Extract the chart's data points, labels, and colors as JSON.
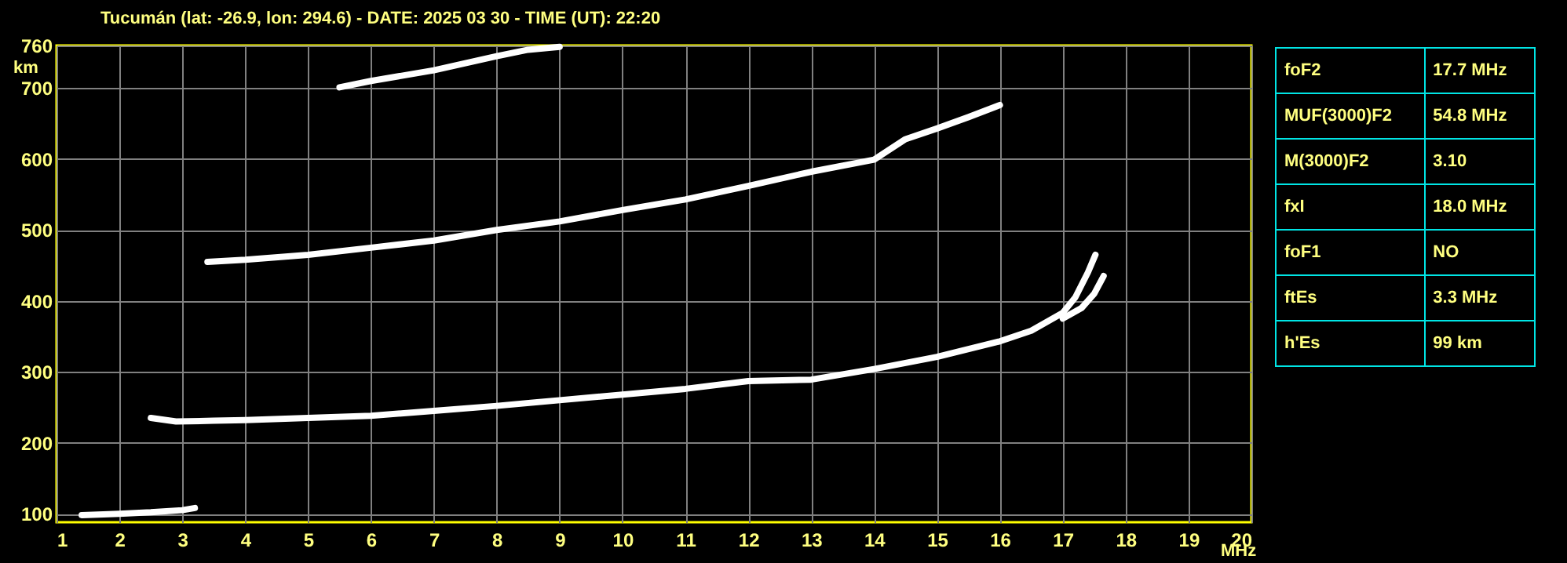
{
  "chart_data": [
    {
      "type": "line",
      "title": "Tucumán (lat: -26.9, lon: 294.6) - DATE: 2025 03 30 - TIME (UT): 22:20",
      "xlabel": "MHz",
      "ylabel": "km",
      "xlim": [
        1,
        20
      ],
      "xticks": [
        1,
        2,
        3,
        4,
        5,
        6,
        7,
        8,
        9,
        10,
        11,
        12,
        13,
        14,
        15,
        16,
        17,
        18,
        19,
        20
      ],
      "ylim": [
        88,
        760
      ],
      "yticks": [
        100,
        200,
        300,
        400,
        500,
        600,
        700,
        760
      ],
      "grid": true,
      "series": [
        {
          "color": "#ffffff",
          "x": [
            2.5,
            2.9,
            3.5,
            4,
            5,
            6,
            7,
            8,
            9,
            10,
            11,
            12,
            13,
            14,
            15,
            16,
            16.5,
            17,
            17.2,
            17.4,
            17.52
          ],
          "values": [
            235,
            230,
            231,
            232,
            235,
            238,
            245,
            252,
            260,
            268,
            276,
            287,
            289,
            304,
            321,
            343,
            358,
            383,
            405,
            440,
            465
          ]
        },
        {
          "color": "#ffffff",
          "x": [
            17,
            17.3,
            17.5,
            17.65
          ],
          "values": [
            375,
            390,
            410,
            435
          ]
        },
        {
          "color": "#ffffff",
          "x": [
            3.4,
            4,
            5,
            6,
            7,
            8,
            9,
            10,
            11,
            12,
            13,
            14,
            14.5,
            15,
            15.5,
            16
          ],
          "values": [
            455,
            458,
            465,
            475,
            485,
            500,
            512,
            528,
            543,
            562,
            582,
            599,
            628,
            643,
            659,
            676
          ]
        },
        {
          "color": "#ffffff",
          "x": [
            5.5,
            6,
            7,
            7.5,
            8,
            8.5,
            9
          ],
          "values": [
            701,
            710,
            725,
            735,
            745,
            754,
            758
          ]
        },
        {
          "color": "#ffffff",
          "x": [
            1.4,
            2,
            2.5,
            3,
            3.2
          ],
          "values": [
            98,
            100,
            102,
            105,
            108
          ]
        }
      ]
    },
    {
      "type": "other",
      "annotations": [
        "foF2",
        "17.7 MHz",
        "MUF(3000)F2",
        "54.8 MHz",
        "M(3000)F2",
        "3.10",
        "fxI",
        "18.0 MHz",
        "foF1",
        "NO",
        "ftEs",
        "3.3 MHz",
        "h'Es",
        "99 km"
      ]
    }
  ]
}
